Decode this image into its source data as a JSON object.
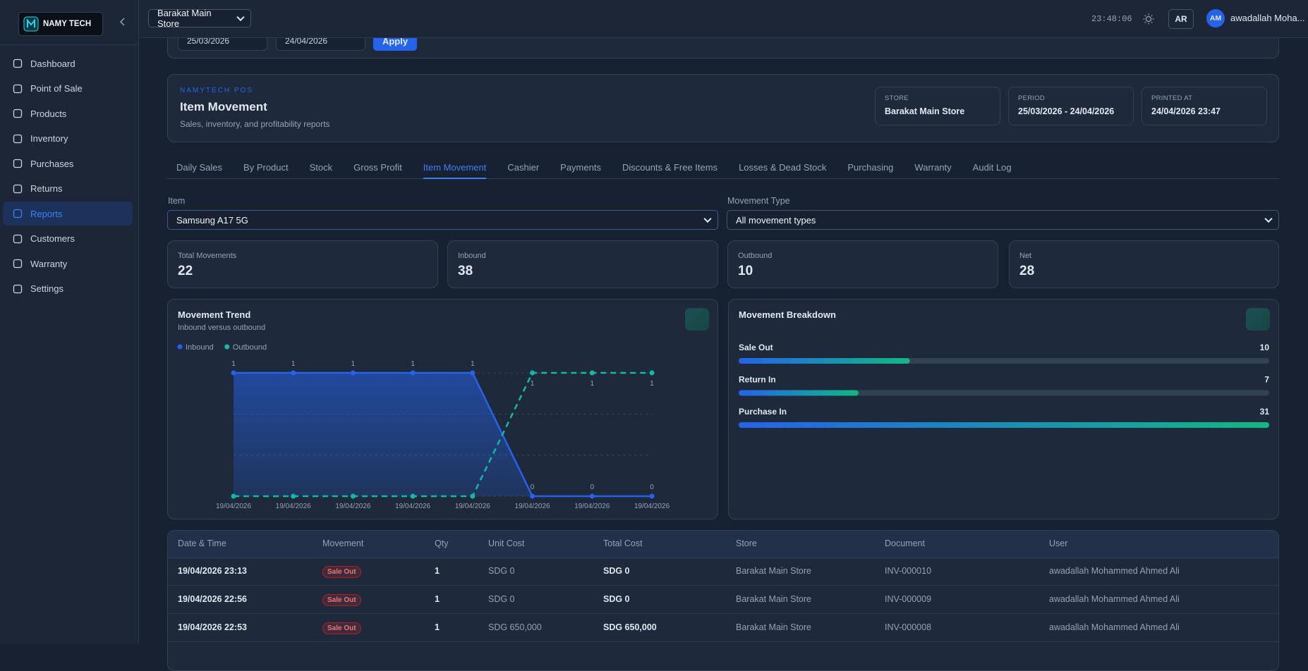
{
  "sidebar": {
    "brand": "NAMY TECH",
    "nav": [
      "Dashboard",
      "Point of Sale",
      "Products",
      "Inventory",
      "Purchases",
      "Returns",
      "Reports",
      "Customers",
      "Warranty",
      "Settings"
    ],
    "active": 6
  },
  "topbar": {
    "store": "Barakat Main Store",
    "clock": "23:48:06",
    "language": "AR",
    "avatar": "AM",
    "user": "awadallah Moha..."
  },
  "date_filter": {
    "from": "25/03/2026",
    "to": "24/04/2026",
    "apply": "Apply"
  },
  "report": {
    "eyebrow": "NAMYTECH POS",
    "title": "Item Movement",
    "subtitle": "Sales, inventory, and profitability reports",
    "meta": [
      {
        "label": "STORE",
        "value": "Barakat Main Store"
      },
      {
        "label": "PERIOD",
        "value": "25/03/2026 - 24/04/2026"
      },
      {
        "label": "PRINTED AT",
        "value": "24/04/2026 23:47"
      }
    ]
  },
  "tabs": {
    "items": [
      "Daily Sales",
      "By Product",
      "Stock",
      "Gross Profit",
      "Item Movement",
      "Cashier",
      "Payments",
      "Discounts & Free Items",
      "Losses & Dead Stock",
      "Purchasing",
      "Warranty",
      "Audit Log"
    ],
    "active": 4
  },
  "filters": [
    {
      "label": "Item",
      "value": "Samsung A17 5G"
    },
    {
      "label": "Movement Type",
      "value": "All movement types"
    }
  ],
  "stats": [
    {
      "label": "Total Movements",
      "value": 22
    },
    {
      "label": "Inbound",
      "value": 38
    },
    {
      "label": "Outbound",
      "value": 10
    },
    {
      "label": "Net",
      "value": 28
    }
  ],
  "chart_data": [
    {
      "type": "line",
      "title": "Movement Trend",
      "subtitle": "Inbound versus outbound",
      "categories": [
        "19/04/2026",
        "19/04/2026",
        "19/04/2026",
        "19/04/2026",
        "19/04/2026",
        "19/04/2026",
        "19/04/2026",
        "19/04/2026"
      ],
      "series": [
        {
          "name": "Inbound",
          "color": "#2563eb",
          "values": [
            1,
            1,
            1,
            1,
            1,
            0,
            0,
            0
          ]
        },
        {
          "name": "Outbound",
          "color": "#14b8a6",
          "dashed": true,
          "values": [
            0,
            0,
            0,
            0,
            0,
            1,
            1,
            1
          ]
        }
      ],
      "ylim": [
        0,
        1
      ],
      "grid": true,
      "legend": "top-left"
    },
    {
      "type": "progress",
      "title": "Movement Breakdown",
      "categories": [
        "Sale Out",
        "Return In",
        "Purchase In"
      ],
      "values": [
        10,
        7,
        31
      ],
      "xlim": [
        0,
        31
      ],
      "colors": [
        "#2563eb",
        "#10b981"
      ]
    }
  ],
  "table": {
    "columns": [
      "Date & Time",
      "Movement",
      "Qty",
      "Unit Cost",
      "Total Cost",
      "Store",
      "Document",
      "User"
    ],
    "rows": [
      [
        "19/04/2026 23:13",
        "Sale Out",
        1,
        "SDG 0",
        "SDG 0",
        "Barakat Main Store",
        "INV-000010",
        "awadallah Mohammed Ahmed Ali"
      ],
      [
        "19/04/2026 22:56",
        "Sale Out",
        1,
        "SDG 0",
        "SDG 0",
        "Barakat Main Store",
        "INV-000009",
        "awadallah Mohammed Ahmed Ali"
      ],
      [
        "19/04/2026 22:53",
        "Sale Out",
        1,
        "SDG 650,000",
        "SDG 650,000",
        "Barakat Main Store",
        "INV-000008",
        "awadallah Mohammed Ahmed Ali"
      ]
    ]
  }
}
